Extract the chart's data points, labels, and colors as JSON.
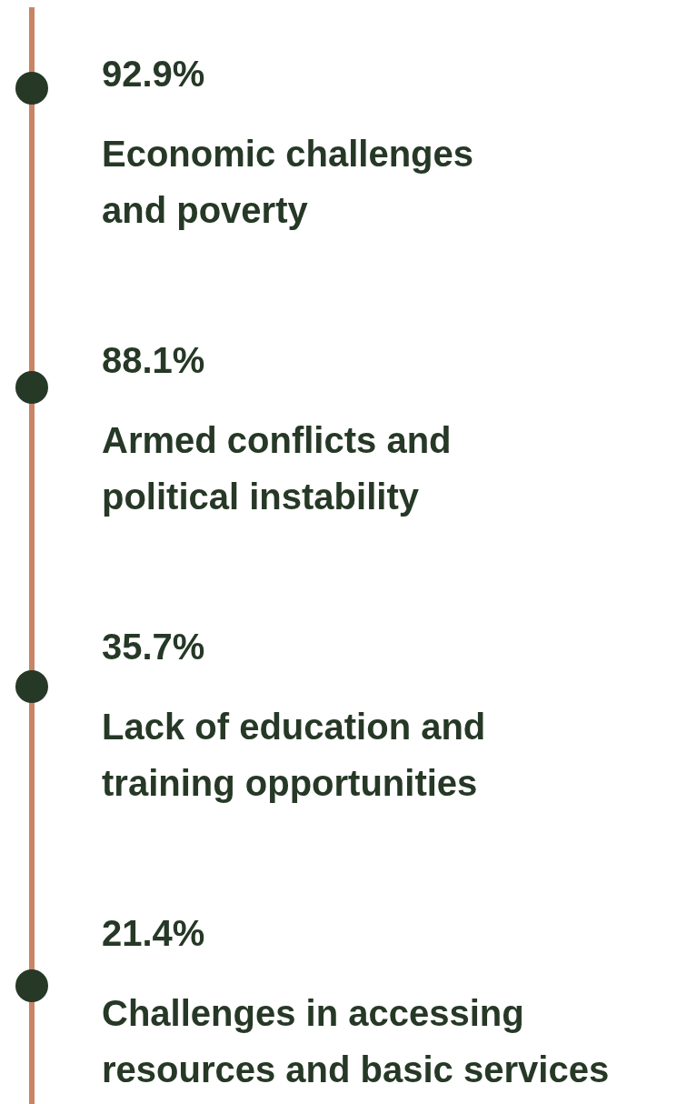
{
  "chart_data": {
    "type": "other",
    "categories": [
      "Economic challenges and poverty",
      "Armed conflicts and political instability",
      "Lack of education and training opportunities",
      "Challenges in accessing resources and basic services"
    ],
    "values": [
      92.9,
      88.1,
      35.7,
      21.4
    ],
    "value_labels": [
      "92.9%",
      "88.1%",
      "35.7%",
      "21.4%"
    ],
    "colors": [
      "#263826",
      "#263826",
      "#263826",
      "#263826"
    ]
  }
}
